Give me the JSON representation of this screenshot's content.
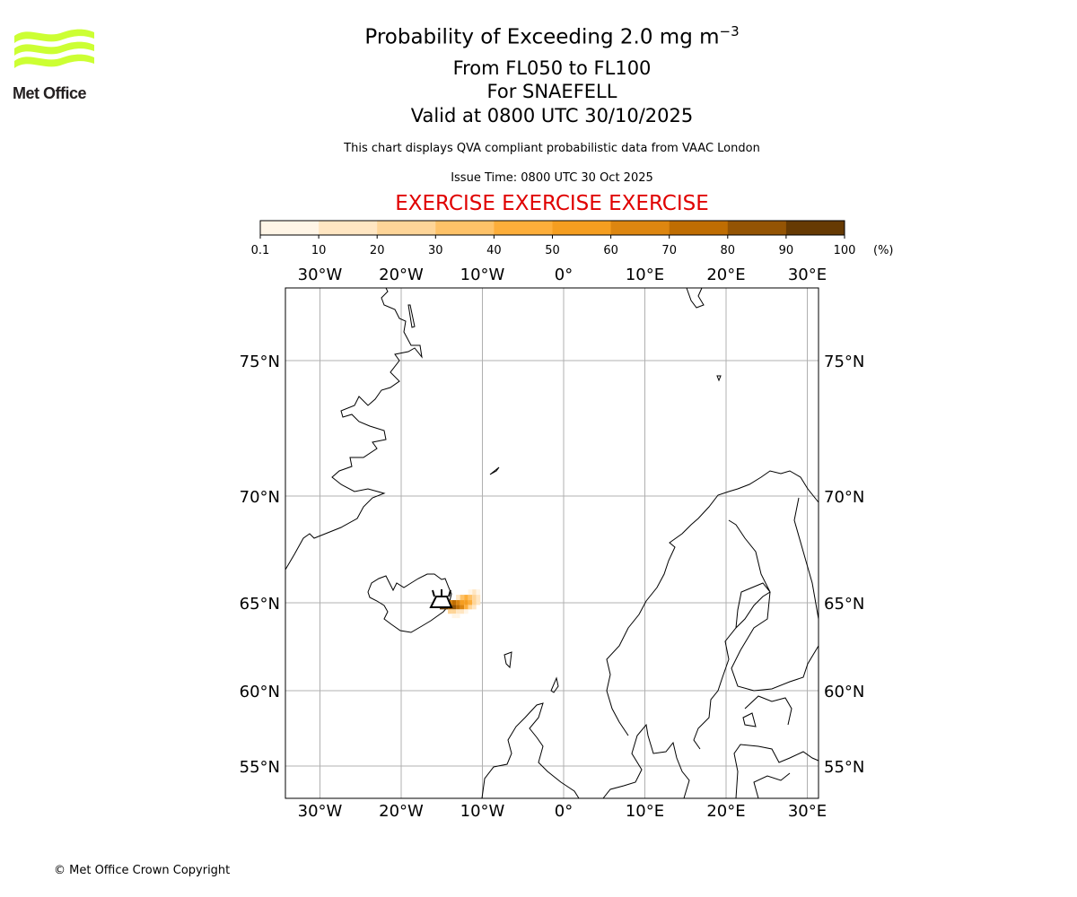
{
  "header": {
    "title_main": "Probability of Exceeding 2.0 mg m",
    "title_superscript": "−3",
    "line_levels": "From FL050 to FL100",
    "line_volcano": "For SNAEFELL",
    "line_valid": "Valid at 0800 UTC 30/10/2025",
    "description": "This chart displays QVA compliant probabilistic data from VAAC London",
    "issue_time": "Issue Time: 0800 UTC 30 Oct 2025",
    "exercise_banner": "EXERCISE EXERCISE EXERCISE",
    "exercise_color": "#e00000"
  },
  "logo": {
    "text": "Met Office",
    "color": "#ccff33"
  },
  "footer": {
    "copyright": "© Met Office Crown Copyright"
  },
  "chart_data": {
    "type": "heatmap",
    "colorbar": {
      "unit_label": "(%)",
      "ticks": [
        "0.1",
        "10",
        "20",
        "30",
        "40",
        "50",
        "60",
        "70",
        "80",
        "90",
        "100"
      ],
      "bounds": [
        0.1,
        10,
        20,
        30,
        40,
        50,
        60,
        70,
        80,
        90,
        100
      ],
      "colors": [
        "#fff5e6",
        "#ffe6c2",
        "#fed598",
        "#fec268",
        "#fdae3a",
        "#f59e20",
        "#dd8610",
        "#bf6d02",
        "#945404",
        "#663a03"
      ]
    },
    "map": {
      "lon_range": [
        -34.5,
        31
      ],
      "lat_range": [
        53.7,
        79
      ],
      "lon_gridlines": [
        -30,
        -20,
        -10,
        0,
        10,
        20,
        30
      ],
      "lon_labels": [
        "30°W",
        "20°W",
        "10°W",
        "0°",
        "10°E",
        "20°E",
        "30°E"
      ],
      "lat_gridlines": [
        75,
        70,
        65,
        60,
        55
      ],
      "lat_labels": [
        "75°N",
        "70°N",
        "65°N",
        "60°N",
        "55°N"
      ],
      "grid": true,
      "volcano": {
        "name": "SNAEFELL",
        "lon": -15.5,
        "lat": 64.8,
        "icon": "volcano-icon"
      }
    },
    "cells_step": {
      "lon": 0.5,
      "lat": 0.25
    },
    "cells": [
      {
        "lat": 65.5,
        "lon": [
          -11.5,
          -11,
          -10.5
        ],
        "p": [
          5,
          10,
          5
        ]
      },
      {
        "lat": 65.25,
        "lon": [
          -13,
          -12.5,
          -12,
          -11.5,
          -11,
          -10.5
        ],
        "p": [
          10,
          30,
          40,
          35,
          20,
          10
        ]
      },
      {
        "lat": 65.0,
        "lon": [
          -14,
          -13.5,
          -13,
          -12.5,
          -12,
          -11.5,
          -11,
          -10.5
        ],
        "p": [
          60,
          70,
          60,
          50,
          50,
          40,
          20,
          10
        ]
      },
      {
        "lat": 64.75,
        "lon": [
          -15,
          -14.5,
          -14,
          -13.5,
          -13,
          -12.5,
          -12,
          -11.5,
          -11
        ],
        "p": [
          95,
          90,
          85,
          80,
          70,
          60,
          40,
          20,
          10
        ]
      },
      {
        "lat": 64.5,
        "lon": [
          -14,
          -13.5,
          -13,
          -12.5,
          -12
        ],
        "p": [
          20,
          25,
          15,
          10,
          5
        ]
      },
      {
        "lat": 64.25,
        "lon": [
          -13.5,
          -13
        ],
        "p": [
          5,
          5
        ]
      }
    ]
  }
}
